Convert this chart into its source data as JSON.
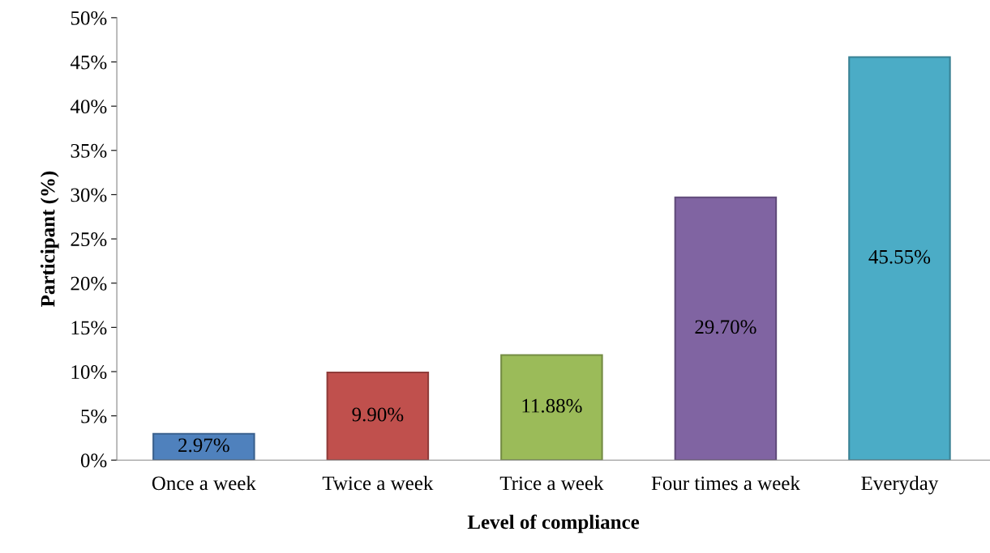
{
  "chart_data": {
    "type": "bar",
    "xlabel": "Level of compliance",
    "ylabel": "Participant (%)",
    "categories": [
      "Once a week",
      "Twice a week",
      "Trice a week",
      "Four times a week",
      "Everyday"
    ],
    "values": [
      2.97,
      9.9,
      11.88,
      29.7,
      45.55
    ],
    "colors": [
      "#4f81bd",
      "#c0504d",
      "#9bbb59",
      "#8064a2",
      "#4bacc6"
    ],
    "value_labels": [
      "2.97%",
      "9.90%",
      "11.88%",
      "29.70%",
      "45.55%"
    ],
    "ylim": [
      0,
      50
    ],
    "yticks": [
      {
        "value": 0,
        "label": "0%"
      },
      {
        "value": 5,
        "label": "5%"
      },
      {
        "value": 10,
        "label": "10%"
      },
      {
        "value": 15,
        "label": "15%"
      },
      {
        "value": 20,
        "label": "20%"
      },
      {
        "value": 25,
        "label": "25%"
      },
      {
        "value": 30,
        "label": "30%"
      },
      {
        "value": 35,
        "label": "35%"
      },
      {
        "value": 40,
        "label": "40%"
      },
      {
        "value": 45,
        "label": "45%"
      },
      {
        "value": 50,
        "label": "50%"
      }
    ],
    "grid": false,
    "legend": false
  }
}
